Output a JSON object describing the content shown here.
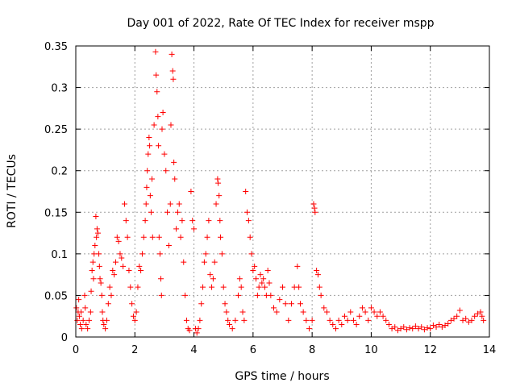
{
  "chart_data": {
    "type": "scatter",
    "title": "Day 001 of 2022, Rate Of TEC Index for receiver mspp",
    "xlabel": "GPS time / hours",
    "ylabel": "ROTI / TECUs",
    "xlim": [
      0,
      14
    ],
    "ylim": [
      0,
      0.35
    ],
    "x_ticks": [
      0,
      2,
      4,
      6,
      8,
      10,
      12,
      14
    ],
    "x_tick_labels": [
      "0",
      "2",
      "4",
      "6",
      "8",
      "10",
      "12",
      "14"
    ],
    "y_ticks": [
      0,
      0.05,
      0.1,
      0.15,
      0.2,
      0.25,
      0.3,
      0.35
    ],
    "y_tick_labels": [
      "0",
      "0.05",
      "0.1",
      "0.15",
      "0.2",
      "0.25",
      "0.3",
      "0.35"
    ],
    "grid": true,
    "marker": "plus",
    "color": "#ff0000",
    "series": [
      {
        "name": "ROTI",
        "points": [
          [
            0.02,
            0.035
          ],
          [
            0.05,
            0.02
          ],
          [
            0.08,
            0.03
          ],
          [
            0.1,
            0.045
          ],
          [
            0.12,
            0.025
          ],
          [
            0.15,
            0.015
          ],
          [
            0.18,
            0.03
          ],
          [
            0.2,
            0.01
          ],
          [
            0.25,
            0.02
          ],
          [
            0.3,
            0.05
          ],
          [
            0.32,
            0.035
          ],
          [
            0.35,
            0.015
          ],
          [
            0.4,
            0.01
          ],
          [
            0.45,
            0.02
          ],
          [
            0.5,
            0.03
          ],
          [
            0.52,
            0.055
          ],
          [
            0.55,
            0.08
          ],
          [
            0.58,
            0.09
          ],
          [
            0.6,
            0.07
          ],
          [
            0.62,
            0.1
          ],
          [
            0.65,
            0.11
          ],
          [
            0.68,
            0.145
          ],
          [
            0.7,
            0.12
          ],
          [
            0.72,
            0.13
          ],
          [
            0.75,
            0.125
          ],
          [
            0.78,
            0.1
          ],
          [
            0.8,
            0.085
          ],
          [
            0.82,
            0.07
          ],
          [
            0.85,
            0.065
          ],
          [
            0.88,
            0.05
          ],
          [
            0.9,
            0.03
          ],
          [
            0.92,
            0.02
          ],
          [
            0.95,
            0.015
          ],
          [
            1.0,
            0.01
          ],
          [
            1.05,
            0.02
          ],
          [
            1.1,
            0.04
          ],
          [
            1.15,
            0.06
          ],
          [
            1.2,
            0.05
          ],
          [
            1.25,
            0.08
          ],
          [
            1.3,
            0.075
          ],
          [
            1.35,
            0.09
          ],
          [
            1.4,
            0.12
          ],
          [
            1.45,
            0.115
          ],
          [
            1.5,
            0.1
          ],
          [
            1.55,
            0.095
          ],
          [
            1.6,
            0.085
          ],
          [
            1.65,
            0.16
          ],
          [
            1.7,
            0.14
          ],
          [
            1.75,
            0.12
          ],
          [
            1.8,
            0.08
          ],
          [
            1.85,
            0.06
          ],
          [
            1.9,
            0.04
          ],
          [
            1.95,
            0.025
          ],
          [
            2.0,
            0.02
          ],
          [
            2.05,
            0.03
          ],
          [
            2.1,
            0.06
          ],
          [
            2.15,
            0.085
          ],
          [
            2.2,
            0.08
          ],
          [
            2.25,
            0.1
          ],
          [
            2.3,
            0.12
          ],
          [
            2.35,
            0.14
          ],
          [
            2.38,
            0.16
          ],
          [
            2.4,
            0.18
          ],
          [
            2.42,
            0.2
          ],
          [
            2.45,
            0.22
          ],
          [
            2.48,
            0.24
          ],
          [
            2.5,
            0.23
          ],
          [
            2.52,
            0.17
          ],
          [
            2.55,
            0.15
          ],
          [
            2.58,
            0.19
          ],
          [
            2.6,
            0.12
          ],
          [
            2.65,
            0.255
          ],
          [
            2.7,
            0.343
          ],
          [
            2.72,
            0.315
          ],
          [
            2.75,
            0.295
          ],
          [
            2.78,
            0.265
          ],
          [
            2.8,
            0.23
          ],
          [
            2.82,
            0.12
          ],
          [
            2.85,
            0.1
          ],
          [
            2.88,
            0.07
          ],
          [
            2.9,
            0.05
          ],
          [
            2.92,
            0.25
          ],
          [
            2.95,
            0.27
          ],
          [
            3.0,
            0.22
          ],
          [
            3.05,
            0.2
          ],
          [
            3.1,
            0.15
          ],
          [
            3.15,
            0.11
          ],
          [
            3.2,
            0.16
          ],
          [
            3.22,
            0.255
          ],
          [
            3.25,
            0.34
          ],
          [
            3.28,
            0.32
          ],
          [
            3.3,
            0.31
          ],
          [
            3.32,
            0.21
          ],
          [
            3.35,
            0.19
          ],
          [
            3.4,
            0.13
          ],
          [
            3.45,
            0.15
          ],
          [
            3.5,
            0.16
          ],
          [
            3.55,
            0.12
          ],
          [
            3.6,
            0.14
          ],
          [
            3.65,
            0.09
          ],
          [
            3.7,
            0.05
          ],
          [
            3.75,
            0.02
          ],
          [
            3.8,
            0.01
          ],
          [
            3.85,
            0.008
          ],
          [
            3.9,
            0.175
          ],
          [
            3.95,
            0.14
          ],
          [
            4.0,
            0.13
          ],
          [
            4.05,
            0.01
          ],
          [
            4.1,
            0.005
          ],
          [
            4.15,
            0.01
          ],
          [
            4.2,
            0.02
          ],
          [
            4.25,
            0.04
          ],
          [
            4.3,
            0.06
          ],
          [
            4.35,
            0.09
          ],
          [
            4.4,
            0.1
          ],
          [
            4.45,
            0.12
          ],
          [
            4.5,
            0.14
          ],
          [
            4.55,
            0.075
          ],
          [
            4.6,
            0.06
          ],
          [
            4.65,
            0.07
          ],
          [
            4.7,
            0.09
          ],
          [
            4.75,
            0.16
          ],
          [
            4.8,
            0.19
          ],
          [
            4.82,
            0.185
          ],
          [
            4.85,
            0.17
          ],
          [
            4.88,
            0.14
          ],
          [
            4.9,
            0.12
          ],
          [
            4.95,
            0.1
          ],
          [
            5.0,
            0.06
          ],
          [
            5.05,
            0.04
          ],
          [
            5.1,
            0.03
          ],
          [
            5.15,
            0.02
          ],
          [
            5.2,
            0.015
          ],
          [
            5.3,
            0.01
          ],
          [
            5.4,
            0.02
          ],
          [
            5.5,
            0.05
          ],
          [
            5.55,
            0.07
          ],
          [
            5.6,
            0.06
          ],
          [
            5.65,
            0.03
          ],
          [
            5.7,
            0.02
          ],
          [
            5.75,
            0.175
          ],
          [
            5.8,
            0.15
          ],
          [
            5.85,
            0.14
          ],
          [
            5.9,
            0.12
          ],
          [
            5.95,
            0.1
          ],
          [
            6.0,
            0.08
          ],
          [
            6.05,
            0.085
          ],
          [
            6.1,
            0.07
          ],
          [
            6.15,
            0.05
          ],
          [
            6.2,
            0.06
          ],
          [
            6.25,
            0.075
          ],
          [
            6.3,
            0.065
          ],
          [
            6.35,
            0.07
          ],
          [
            6.4,
            0.06
          ],
          [
            6.45,
            0.05
          ],
          [
            6.5,
            0.08
          ],
          [
            6.55,
            0.065
          ],
          [
            6.6,
            0.05
          ],
          [
            6.7,
            0.035
          ],
          [
            6.8,
            0.03
          ],
          [
            6.9,
            0.045
          ],
          [
            7.0,
            0.06
          ],
          [
            7.1,
            0.04
          ],
          [
            7.2,
            0.02
          ],
          [
            7.3,
            0.04
          ],
          [
            7.4,
            0.06
          ],
          [
            7.5,
            0.085
          ],
          [
            7.55,
            0.06
          ],
          [
            7.6,
            0.04
          ],
          [
            7.7,
            0.03
          ],
          [
            7.8,
            0.02
          ],
          [
            7.9,
            0.01
          ],
          [
            8.0,
            0.02
          ],
          [
            8.05,
            0.16
          ],
          [
            8.08,
            0.155
          ],
          [
            8.1,
            0.15
          ],
          [
            8.15,
            0.08
          ],
          [
            8.2,
            0.075
          ],
          [
            8.25,
            0.06
          ],
          [
            8.3,
            0.05
          ],
          [
            8.4,
            0.035
          ],
          [
            8.5,
            0.03
          ],
          [
            8.6,
            0.02
          ],
          [
            8.7,
            0.015
          ],
          [
            8.8,
            0.01
          ],
          [
            8.9,
            0.02
          ],
          [
            9.0,
            0.015
          ],
          [
            9.1,
            0.025
          ],
          [
            9.2,
            0.02
          ],
          [
            9.3,
            0.03
          ],
          [
            9.4,
            0.02
          ],
          [
            9.5,
            0.015
          ],
          [
            9.6,
            0.025
          ],
          [
            9.7,
            0.035
          ],
          [
            9.8,
            0.03
          ],
          [
            9.9,
            0.02
          ],
          [
            10.0,
            0.035
          ],
          [
            10.1,
            0.03
          ],
          [
            10.2,
            0.025
          ],
          [
            10.3,
            0.03
          ],
          [
            10.4,
            0.025
          ],
          [
            10.5,
            0.02
          ],
          [
            10.6,
            0.015
          ],
          [
            10.7,
            0.01
          ],
          [
            10.8,
            0.012
          ],
          [
            10.9,
            0.008
          ],
          [
            11.0,
            0.01
          ],
          [
            11.1,
            0.012
          ],
          [
            11.2,
            0.009
          ],
          [
            11.3,
            0.011
          ],
          [
            11.4,
            0.01
          ],
          [
            11.5,
            0.013
          ],
          [
            11.6,
            0.01
          ],
          [
            11.7,
            0.012
          ],
          [
            11.8,
            0.009
          ],
          [
            11.9,
            0.011
          ],
          [
            12.0,
            0.01
          ],
          [
            12.1,
            0.014
          ],
          [
            12.2,
            0.012
          ],
          [
            12.3,
            0.015
          ],
          [
            12.4,
            0.012
          ],
          [
            12.5,
            0.014
          ],
          [
            12.6,
            0.016
          ],
          [
            12.7,
            0.02
          ],
          [
            12.8,
            0.022
          ],
          [
            12.9,
            0.025
          ],
          [
            13.0,
            0.032
          ],
          [
            13.1,
            0.02
          ],
          [
            13.2,
            0.022
          ],
          [
            13.3,
            0.018
          ],
          [
            13.4,
            0.02
          ],
          [
            13.5,
            0.025
          ],
          [
            13.6,
            0.028
          ],
          [
            13.7,
            0.03
          ],
          [
            13.75,
            0.025
          ],
          [
            13.8,
            0.02
          ]
        ]
      }
    ]
  }
}
